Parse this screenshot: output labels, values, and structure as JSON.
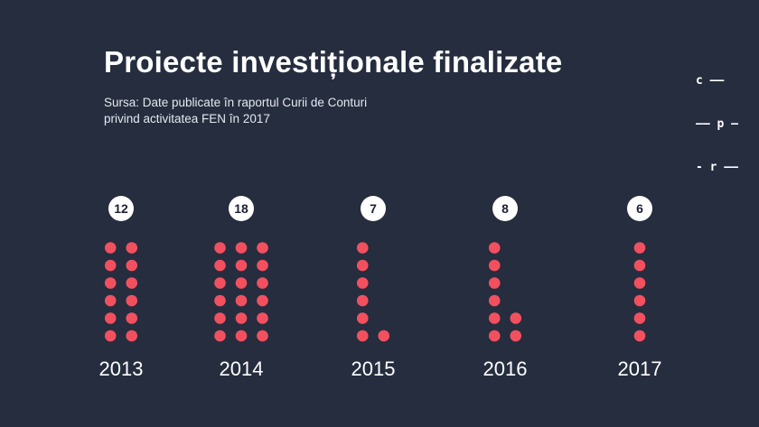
{
  "header": {
    "title": "Proiecte investiționale finalizate",
    "source_line1": "Sursa: Date publicate în raportul Curii de Conturi",
    "source_line2": "privind activitatea FEN în 2017"
  },
  "logo": {
    "line1": "c ——",
    "line2": "—— p —",
    "line3": "- r ——"
  },
  "colors": {
    "background": "#252d3f",
    "dot": "#f2505f",
    "badge": "#ffffff",
    "badge_text": "#1c2233"
  },
  "chart_data": {
    "type": "dot-column",
    "categories": [
      "2013",
      "2014",
      "2015",
      "2016",
      "2017"
    ],
    "values": [
      12,
      18,
      7,
      8,
      6
    ],
    "dots_per_column": 6
  }
}
